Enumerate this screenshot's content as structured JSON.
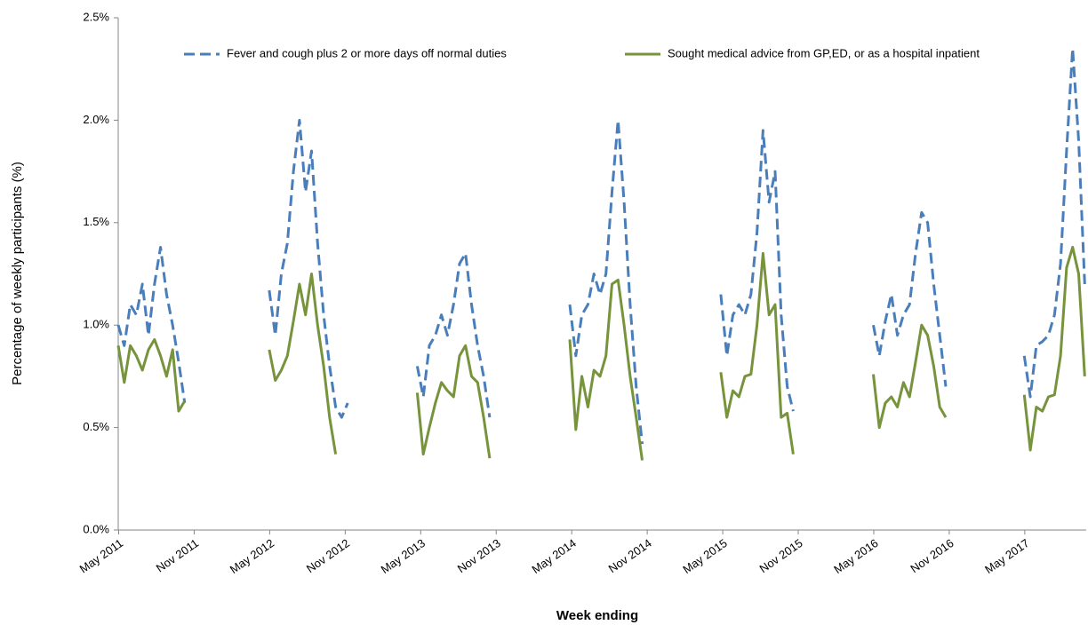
{
  "chart_data": {
    "type": "line",
    "y_label": "Percentage of weekly participants (%)",
    "x_label": "Week ending",
    "x": [
      2011.33,
      2011.37,
      2011.41,
      2011.45,
      2011.49,
      2011.53,
      2011.57,
      2011.61,
      2011.65,
      2011.69,
      2011.73,
      2011.77,
      2012.05,
      2012.33,
      2012.37,
      2012.41,
      2012.45,
      2012.49,
      2012.53,
      2012.57,
      2012.61,
      2012.65,
      2012.69,
      2012.73,
      2012.77,
      2012.81,
      2012.85,
      2013.05,
      2013.31,
      2013.35,
      2013.39,
      2013.43,
      2013.47,
      2013.51,
      2013.55,
      2013.59,
      2013.63,
      2013.67,
      2013.71,
      2013.75,
      2013.79,
      2014.05,
      2014.32,
      2014.36,
      2014.4,
      2014.44,
      2014.48,
      2014.52,
      2014.56,
      2014.6,
      2014.64,
      2014.68,
      2014.72,
      2014.76,
      2014.8,
      2015.05,
      2015.32,
      2015.36,
      2015.4,
      2015.44,
      2015.48,
      2015.52,
      2015.56,
      2015.6,
      2015.64,
      2015.68,
      2015.72,
      2015.76,
      2015.8,
      2016.05,
      2016.33,
      2016.37,
      2016.41,
      2016.45,
      2016.49,
      2016.53,
      2016.57,
      2016.61,
      2016.65,
      2016.69,
      2016.73,
      2016.77,
      2016.81,
      2017.05,
      2017.33,
      2017.37,
      2017.41,
      2017.45,
      2017.49,
      2017.53,
      2017.57,
      2017.61,
      2017.65,
      2017.69,
      2017.73
    ],
    "series": [
      {
        "name": "Fever and cough plus 2 or more days off normal duties",
        "color": "#4a7ebb",
        "dash": true,
        "values": [
          1.0,
          0.9,
          1.1,
          1.05,
          1.2,
          0.95,
          1.2,
          1.38,
          1.15,
          1.0,
          0.82,
          0.62,
          null,
          1.17,
          0.95,
          1.25,
          1.4,
          1.75,
          2.0,
          1.65,
          1.85,
          1.4,
          1.05,
          0.8,
          0.6,
          0.55,
          0.62,
          null,
          0.8,
          0.65,
          0.9,
          0.95,
          1.05,
          0.95,
          1.1,
          1.3,
          1.35,
          1.1,
          0.9,
          0.75,
          0.55,
          null,
          1.1,
          0.85,
          1.05,
          1.1,
          1.25,
          1.15,
          1.25,
          1.65,
          2.0,
          1.6,
          1.1,
          0.7,
          0.42,
          null,
          1.15,
          0.85,
          1.05,
          1.1,
          1.05,
          1.15,
          1.45,
          1.95,
          1.6,
          1.75,
          1.05,
          0.7,
          0.58,
          null,
          1.0,
          0.85,
          1.02,
          1.15,
          0.95,
          1.05,
          1.1,
          1.35,
          1.55,
          1.5,
          1.2,
          0.95,
          0.7,
          null,
          0.85,
          0.65,
          0.9,
          0.92,
          0.95,
          1.05,
          1.3,
          1.85,
          2.35,
          1.9,
          1.2
        ]
      },
      {
        "name": "Sought medical advice from GP,ED, or as a hospital inpatient",
        "color": "#77933c",
        "dash": false,
        "values": [
          0.9,
          0.72,
          0.9,
          0.85,
          0.78,
          0.88,
          0.93,
          0.85,
          0.75,
          0.88,
          0.58,
          0.63,
          null,
          0.88,
          0.73,
          0.78,
          0.85,
          1.02,
          1.2,
          1.05,
          1.25,
          1.0,
          0.8,
          0.55,
          0.37,
          null,
          null,
          null,
          0.67,
          0.37,
          0.5,
          0.62,
          0.72,
          0.68,
          0.65,
          0.85,
          0.9,
          0.75,
          0.72,
          0.55,
          0.35,
          null,
          0.93,
          0.49,
          0.75,
          0.6,
          0.78,
          0.75,
          0.85,
          1.2,
          1.22,
          1.0,
          0.75,
          0.55,
          0.34,
          null,
          0.77,
          0.55,
          0.68,
          0.65,
          0.75,
          0.76,
          1.0,
          1.35,
          1.05,
          1.1,
          0.55,
          0.57,
          0.37,
          null,
          0.76,
          0.5,
          0.62,
          0.65,
          0.6,
          0.72,
          0.65,
          0.82,
          1.0,
          0.95,
          0.8,
          0.6,
          0.55,
          null,
          0.66,
          0.39,
          0.6,
          0.58,
          0.65,
          0.66,
          0.85,
          1.28,
          1.38,
          1.25,
          0.75
        ]
      }
    ],
    "xlim": [
      2011.33,
      2017.74
    ],
    "xticks": [
      {
        "value": 2011.333,
        "label": "May 2011"
      },
      {
        "value": 2011.833,
        "label": "Nov 2011"
      },
      {
        "value": 2012.333,
        "label": "May 2012"
      },
      {
        "value": 2012.833,
        "label": "Nov 2012"
      },
      {
        "value": 2013.333,
        "label": "May 2013"
      },
      {
        "value": 2013.833,
        "label": "Nov 2013"
      },
      {
        "value": 2014.333,
        "label": "May 2014"
      },
      {
        "value": 2014.833,
        "label": "Nov 2014"
      },
      {
        "value": 2015.333,
        "label": "May 2015"
      },
      {
        "value": 2015.833,
        "label": "Nov 2015"
      },
      {
        "value": 2016.333,
        "label": "May 2016"
      },
      {
        "value": 2016.833,
        "label": "Nov 2016"
      },
      {
        "value": 2017.333,
        "label": "May 2017"
      }
    ],
    "ylim": [
      0,
      2.5
    ],
    "yticks": [
      {
        "value": 0,
        "label": "0.0%"
      },
      {
        "value": 0.5,
        "label": "0.5%"
      },
      {
        "value": 1,
        "label": "1.0%"
      },
      {
        "value": 1.5,
        "label": "1.5%"
      },
      {
        "value": 2,
        "label": "2.0%"
      },
      {
        "value": 2.5,
        "label": "2.5%"
      }
    ],
    "grid": false
  }
}
